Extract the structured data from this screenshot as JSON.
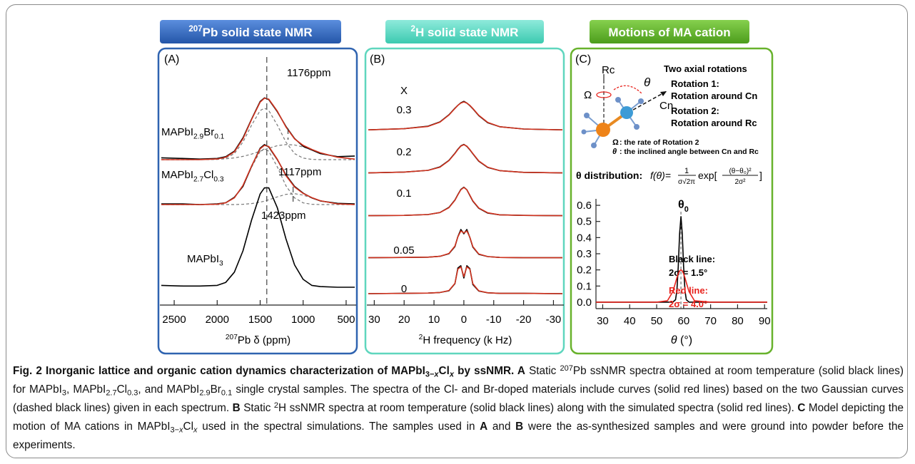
{
  "chart_data": [
    {
      "type": "line",
      "header": [
        {
          "text": "207",
          "style": "sup"
        },
        {
          "text": "Pb solid state NMR",
          "style": "bold"
        }
      ],
      "panel_label": "(A)",
      "x": [
        2650,
        2400,
        2200,
        2000,
        1900,
        1800,
        1700,
        1600,
        1500,
        1450,
        1400,
        1300,
        1200,
        1100,
        1000,
        900,
        800,
        600,
        400
      ],
      "xlim": [
        2650,
        400
      ],
      "xticks": [
        2500,
        2000,
        1500,
        1000,
        500
      ],
      "xlabel": [
        {
          "text": "207",
          "style": "sup"
        },
        {
          "text": "Pb δ (ppm)",
          "style": "normal"
        }
      ],
      "spectra": [
        {
          "label": [
            {
              "text": "MAPbI",
              "style": "normal"
            },
            {
              "text": "2.9",
              "style": "sub"
            },
            {
              "text": "Br",
              "style": "normal"
            },
            {
              "text": "0.1",
              "style": "sub"
            }
          ],
          "annotation": {
            "value": 1176,
            "label": "1176ppm"
          },
          "series": [
            {
              "color": "#777777",
              "dash": true,
              "values": [
                0,
                0,
                0,
                0.005,
                0.026,
                0.1,
                0.29,
                0.57,
                0.81,
                0.85,
                0.81,
                0.57,
                0.29,
                0.1,
                0.026,
                0.005,
                0,
                0,
                0
              ]
            },
            {
              "color": "#777777",
              "dash": true,
              "values": [
                0,
                0,
                0.001,
                0.006,
                0.014,
                0.029,
                0.054,
                0.092,
                0.14,
                0.164,
                0.189,
                0.23,
                0.25,
                0.242,
                0.21,
                0.164,
                0.113,
                0.04,
                0.009
              ]
            },
            {
              "color": "#000000",
              "dash": false,
              "values": [
                0.03,
                0.02,
                0.01,
                0.02,
                0.05,
                0.14,
                0.36,
                0.67,
                0.96,
                1.02,
                0.99,
                0.79,
                0.55,
                0.35,
                0.22,
                0.16,
                0.1,
                0.05,
                0.06
              ]
            },
            {
              "color": "#d0331f",
              "dash": false,
              "values": [
                0,
                0,
                0.001,
                0.011,
                0.04,
                0.129,
                0.344,
                0.662,
                0.95,
                1.014,
                0.999,
                0.8,
                0.54,
                0.342,
                0.236,
                0.169,
                0.113,
                0.04,
                0.009
              ]
            }
          ]
        },
        {
          "label": [
            {
              "text": "MAPbI",
              "style": "normal"
            },
            {
              "text": "2.7",
              "style": "sub"
            },
            {
              "text": "Cl",
              "style": "normal"
            },
            {
              "text": "0.3",
              "style": "sub"
            }
          ],
          "annotation": {
            "value": 1117,
            "label": "1117ppm"
          },
          "series": [
            {
              "color": "#777777",
              "dash": true,
              "values": [
                0,
                0,
                0,
                0.005,
                0.028,
                0.11,
                0.31,
                0.62,
                0.88,
                0.92,
                0.88,
                0.62,
                0.31,
                0.11,
                0.028,
                0.005,
                0,
                0,
                0
              ]
            },
            {
              "color": "#777777",
              "dash": true,
              "values": [
                0,
                0,
                0,
                0,
                0,
                0,
                0.005,
                0.016,
                0.04,
                0.057,
                0.079,
                0.127,
                0.168,
                0.18,
                0.156,
                0.11,
                0.064,
                0.011,
                0
              ]
            },
            {
              "color": "#000000",
              "dash": false,
              "values": [
                0.01,
                0.01,
                0,
                0.01,
                0.03,
                0.12,
                0.3,
                0.63,
                0.93,
                0.99,
                0.95,
                0.74,
                0.49,
                0.3,
                0.19,
                0.11,
                0.06,
                0.02,
                0.01
              ]
            },
            {
              "color": "#d0331f",
              "dash": false,
              "values": [
                0,
                0,
                0,
                0.005,
                0.028,
                0.11,
                0.315,
                0.636,
                0.92,
                0.977,
                0.959,
                0.747,
                0.478,
                0.29,
                0.184,
                0.115,
                0.064,
                0.011,
                0
              ]
            }
          ]
        },
        {
          "label": [
            {
              "text": "MAPbI",
              "style": "normal"
            },
            {
              "text": "3",
              "style": "sub"
            }
          ],
          "annotation": {
            "value": 1423,
            "label": "1423ppm"
          },
          "series": [
            {
              "color": "#000000",
              "dash": false,
              "values": [
                0.03,
                0.02,
                0.02,
                0.03,
                0.08,
                0.25,
                0.6,
                1.11,
                1.54,
                1.64,
                1.64,
                1.31,
                0.8,
                0.37,
                0.13,
                0.03,
                0.01,
                0,
                0
              ]
            }
          ]
        }
      ]
    },
    {
      "type": "line",
      "header": [
        {
          "text": "2",
          "style": "sup"
        },
        {
          "text": "H solid state NMR",
          "style": "bold"
        }
      ],
      "panel_label": "(B)",
      "series_title": "X",
      "x": [
        32,
        20,
        12,
        8,
        5,
        3,
        2,
        1,
        0,
        -1,
        -2,
        -3,
        -5,
        -8,
        -12,
        -20,
        -33
      ],
      "xlim": [
        32,
        -33
      ],
      "xticks": [
        30,
        20,
        10,
        0,
        -10,
        -20,
        -30
      ],
      "xlabel": [
        {
          "text": "2",
          "style": "sup"
        },
        {
          "text": "H frequency (k Hz)",
          "style": "normal"
        }
      ],
      "spectra": [
        {
          "label": "0.3",
          "series": [
            {
              "color": "#000000",
              "dash": false,
              "values": [
                0.02,
                0.06,
                0.15,
                0.3,
                0.55,
                0.78,
                0.88,
                0.97,
                1.02,
                0.96,
                0.87,
                0.76,
                0.52,
                0.27,
                0.13,
                0.05,
                0.02
              ]
            },
            {
              "color": "#d0331f",
              "dash": false,
              "values": [
                0.02,
                0.06,
                0.14,
                0.29,
                0.54,
                0.77,
                0.88,
                0.96,
                1,
                0.96,
                0.88,
                0.77,
                0.53,
                0.28,
                0.13,
                0.05,
                0.02
              ]
            }
          ]
        },
        {
          "label": "0.2",
          "series": [
            {
              "color": "#000000",
              "dash": false,
              "values": [
                0.01,
                0.04,
                0.1,
                0.22,
                0.45,
                0.7,
                0.84,
                0.96,
                1.01,
                0.94,
                0.82,
                0.68,
                0.42,
                0.2,
                0.09,
                0.03,
                0.01
              ]
            },
            {
              "color": "#d0331f",
              "dash": false,
              "values": [
                0.01,
                0.04,
                0.1,
                0.21,
                0.44,
                0.69,
                0.83,
                0.95,
                1,
                0.95,
                0.83,
                0.69,
                0.43,
                0.21,
                0.09,
                0.03,
                0.01
              ]
            }
          ]
        },
        {
          "label": "0.1",
          "series": [
            {
              "color": "#000000",
              "dash": false,
              "values": [
                0.01,
                0.02,
                0.05,
                0.12,
                0.3,
                0.56,
                0.75,
                0.93,
                1.01,
                0.92,
                0.72,
                0.52,
                0.27,
                0.1,
                0.04,
                0.02,
                0.01
              ]
            },
            {
              "color": "#d0331f",
              "dash": false,
              "values": [
                0.01,
                0.02,
                0.05,
                0.12,
                0.29,
                0.55,
                0.74,
                0.92,
                1,
                0.92,
                0.73,
                0.53,
                0.28,
                0.11,
                0.04,
                0.02,
                0.01
              ]
            }
          ]
        },
        {
          "label": "0.05",
          "series": [
            {
              "color": "#000000",
              "dash": false,
              "values": [
                0.01,
                0.02,
                0.03,
                0.06,
                0.15,
                0.4,
                0.75,
                1,
                0.85,
                1,
                0.72,
                0.38,
                0.13,
                0.05,
                0.02,
                0.01,
                0.01
              ]
            },
            {
              "color": "#d0331f",
              "dash": false,
              "values": [
                0.01,
                0.02,
                0.03,
                0.06,
                0.16,
                0.42,
                0.74,
                0.95,
                0.88,
                0.95,
                0.73,
                0.4,
                0.14,
                0.05,
                0.02,
                0.01,
                0.01
              ]
            }
          ]
        },
        {
          "label": "0",
          "series": [
            {
              "color": "#000000",
              "dash": false,
              "values": [
                0,
                0.01,
                0.02,
                0.04,
                0.1,
                0.35,
                0.9,
                0.98,
                0.55,
                0.98,
                0.88,
                0.32,
                0.09,
                0.03,
                0.01,
                0.01,
                0
              ]
            },
            {
              "color": "#d0331f",
              "dash": false,
              "values": [
                0,
                0.01,
                0.02,
                0.04,
                0.11,
                0.36,
                0.86,
                0.94,
                0.6,
                0.94,
                0.86,
                0.35,
                0.1,
                0.03,
                0.01,
                0.01,
                0
              ]
            }
          ]
        }
      ]
    },
    {
      "type": "line",
      "header": [
        {
          "text": "Motions of MA cation",
          "style": "bold"
        }
      ],
      "panel_label": "(C)",
      "diagram": {
        "axis_rc": "Rc",
        "omega": "Ω",
        "theta": "θ",
        "axis_cn": "Cn",
        "heading": "Two axial rotations",
        "rotations": [
          {
            "title": "Rotation 1:",
            "text": "Rotation around Cn"
          },
          {
            "title": "Rotation 2:",
            "text": "Rotation around Rc"
          }
        ],
        "notes": [
          {
            "symbol": "Ω",
            "text": ": the rate of Rotation 2"
          },
          {
            "symbol": "θ",
            "text": ": the inclined angle between Cn and Rc"
          }
        ]
      },
      "distribution": {
        "label": "θ distribution:",
        "lhs": "f(θ)=",
        "frac1": {
          "num": "1",
          "den": "σ√2π"
        },
        "fn": "exp[",
        "frac2": {
          "num": "(θ−θ₀)²",
          "den": "2σ²"
        },
        "close": "]"
      },
      "x": [
        27.5,
        50,
        54,
        56,
        57,
        57.5,
        58,
        58.5,
        59,
        59.5,
        60,
        60.5,
        61,
        62,
        64,
        70,
        91
      ],
      "xlim": [
        27.5,
        91
      ],
      "xticks": [
        30,
        40,
        50,
        60,
        70,
        80,
        90
      ],
      "ylim": [
        -0.04,
        0.64
      ],
      "yticks": [
        {
          "value": 0,
          "label": "0.0"
        },
        0.1,
        0.2,
        0.3,
        0.4,
        0.5,
        0.6
      ],
      "xlabel": [
        {
          "text": "θ",
          "style": "italic"
        },
        {
          "text": " (°)",
          "style": "normal"
        }
      ],
      "annotation": {
        "value": 59,
        "label": [
          {
            "text": "θ",
            "style": "bold"
          },
          {
            "text": "0",
            "style": "bold-sub"
          }
        ]
      },
      "series": [
        {
          "name": "Black line:",
          "label": "2σ = 1.5°",
          "color": "#000000",
          "values": [
            0,
            0,
            0,
            0,
            0.015,
            0.072,
            0.22,
            0.425,
            0.53,
            0.425,
            0.22,
            0.072,
            0.015,
            0,
            0,
            0,
            0
          ]
        },
        {
          "name": "Red line:",
          "label": "2σ = 4.0°",
          "color": "#e8231d",
          "values": [
            0,
            0,
            0.009,
            0.065,
            0.121,
            0.151,
            0.176,
            0.194,
            0.2,
            0.194,
            0.176,
            0.151,
            0.121,
            0.065,
            0.009,
            0,
            0
          ]
        }
      ]
    }
  ],
  "caption": [
    {
      "text": "Fig. 2 Inorganic lattice and organic cation dynamics characterization of MAPbI",
      "style": "bold"
    },
    {
      "text": "3−",
      "style": "bold-sub"
    },
    {
      "text": "x",
      "style": "bold-sub-italic"
    },
    {
      "text": "Cl",
      "style": "bold"
    },
    {
      "text": "x",
      "style": "bold-sub-italic"
    },
    {
      "text": " by ssNMR. ",
      "style": "bold"
    },
    {
      "text": "A",
      "style": "bold"
    },
    {
      "text": " Static ",
      "style": "normal"
    },
    {
      "text": "207",
      "style": "sup"
    },
    {
      "text": "Pb ssNMR spectra obtained at room temperature (solid black lines) for MAPbI",
      "style": "normal"
    },
    {
      "text": "3",
      "style": "sub"
    },
    {
      "text": ", MAPbI",
      "style": "normal"
    },
    {
      "text": "2.7",
      "style": "sub"
    },
    {
      "text": "Cl",
      "style": "normal"
    },
    {
      "text": "0.3",
      "style": "sub"
    },
    {
      "text": ", and MAPbI",
      "style": "normal"
    },
    {
      "text": "2.9",
      "style": "sub"
    },
    {
      "text": "Br",
      "style": "normal"
    },
    {
      "text": "0.1",
      "style": "sub"
    },
    {
      "text": " single crystal samples. The spectra of the Cl- and Br-doped materials include curves (solid red lines) based on the two Gaussian curves (dashed black lines) given in each spectrum. ",
      "style": "normal"
    },
    {
      "text": "B",
      "style": "bold"
    },
    {
      "text": " Static ",
      "style": "normal"
    },
    {
      "text": "2",
      "style": "sup"
    },
    {
      "text": "H ssNMR spectra at room temperature (solid black lines) along with the simulated spectra (solid red lines). ",
      "style": "normal"
    },
    {
      "text": "C",
      "style": "bold"
    },
    {
      "text": " Model depicting the motion of MA cations in MAPbI",
      "style": "normal"
    },
    {
      "text": "3−",
      "style": "sub"
    },
    {
      "text": "x",
      "style": "sub-italic"
    },
    {
      "text": "Cl",
      "style": "normal"
    },
    {
      "text": "x",
      "style": "sub-italic"
    },
    {
      "text": " used in the spectral simulations. The samples used in ",
      "style": "normal"
    },
    {
      "text": "A",
      "style": "bold"
    },
    {
      "text": " and ",
      "style": "normal"
    },
    {
      "text": "B",
      "style": "bold"
    },
    {
      "text": " were the as-synthesized samples and were ground into powder before the experiments.",
      "style": "normal"
    }
  ]
}
